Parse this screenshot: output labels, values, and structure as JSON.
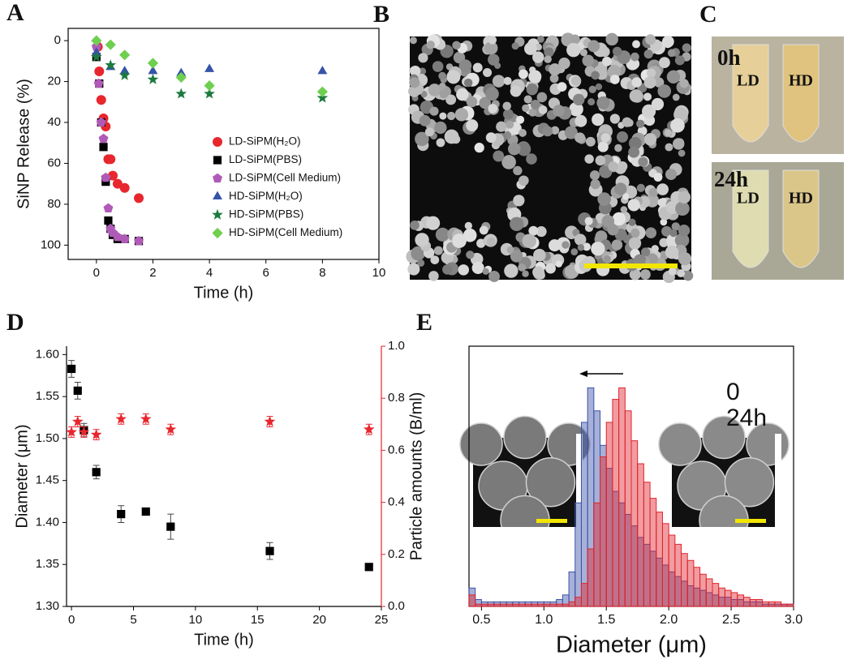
{
  "chart_data": [
    {
      "panel": "A",
      "type": "scatter",
      "xlabel": "Time (h)",
      "ylabel": "SiNP Release (%)",
      "xlim": [
        -1,
        10
      ],
      "xticks": [
        0,
        2,
        4,
        6,
        8,
        10
      ],
      "ylim": [
        -6,
        107
      ],
      "y_reversed": true,
      "yticks": [
        0,
        20,
        40,
        60,
        80,
        100
      ],
      "legend": "center-right",
      "series": [
        {
          "name": "LD-SiPM(H₂O)",
          "color": "#e8262d",
          "marker": "circle",
          "x": [
            0.05,
            0.1,
            0.17,
            0.25,
            0.33,
            0.42,
            0.5,
            0.58,
            0.75,
            1,
            1.5
          ],
          "values": [
            3,
            15,
            29,
            38,
            42,
            58,
            58,
            66,
            70,
            72,
            77
          ]
        },
        {
          "name": "LD-SiPM(PBS)",
          "color": "#000000",
          "marker": "square",
          "x": [
            0,
            0.1,
            0.17,
            0.25,
            0.33,
            0.42,
            0.5,
            0.58,
            0.75,
            1,
            1.5
          ],
          "values": [
            8,
            21,
            40,
            52,
            69,
            88,
            92,
            95,
            97,
            97,
            98
          ]
        },
        {
          "name": "LD-SiPM(Cell Medium)",
          "color": "#b05ab8",
          "marker": "pentagon",
          "x": [
            0,
            0.08,
            0.17,
            0.25,
            0.33,
            0.42,
            0.5,
            0.58,
            0.75,
            1,
            1.5
          ],
          "values": [
            3,
            21,
            40,
            48,
            67,
            82,
            92,
            94,
            96,
            97,
            98
          ]
        },
        {
          "name": "HD-SiPM(H₂O)",
          "color": "#3553a8",
          "marker": "triangle",
          "x": [
            0,
            0.5,
            1,
            2,
            3,
            4,
            8
          ],
          "values": [
            6,
            13,
            15,
            15,
            16,
            14,
            15
          ]
        },
        {
          "name": "HD-SiPM(PBS)",
          "color": "#1d7a3e",
          "marker": "star",
          "x": [
            0,
            0.5,
            1,
            2,
            3,
            4,
            8
          ],
          "values": [
            8,
            12,
            17,
            19,
            26,
            26,
            28
          ]
        },
        {
          "name": "HD-SiPM(Cell Medium)",
          "color": "#6fcf4f",
          "marker": "diamond",
          "x": [
            0,
            0.5,
            1,
            2,
            3,
            4,
            8
          ],
          "values": [
            0,
            2,
            7,
            11,
            18,
            22,
            25
          ]
        }
      ]
    },
    {
      "panel": "D",
      "type": "scatter",
      "xlabel": "Time (h)",
      "ylabel": "Diameter (μm)",
      "y2label": "Particle amounts (B/ml)",
      "y2color": "#e8262d",
      "xlim": [
        -0.4,
        25
      ],
      "xticks": [
        0,
        5,
        10,
        15,
        20,
        25
      ],
      "ylim": [
        1.3,
        1.61
      ],
      "yticks": [
        {
          "value": 1.3,
          "label": "1.30"
        },
        1.35,
        {
          "value": 1.4,
          "label": "1.40"
        },
        1.45,
        {
          "value": 1.5,
          "label": "1.50"
        },
        1.55,
        {
          "value": 1.6,
          "label": "1.60"
        }
      ],
      "y2lim": [
        0,
        1.0
      ],
      "y2ticks": [
        {
          "value": 0,
          "label": "0.0"
        },
        0.2,
        0.4,
        0.6,
        0.8,
        {
          "value": 1,
          "label": "1.0"
        }
      ],
      "series": [
        {
          "color": "#000000",
          "marker": "square",
          "x": [
            0,
            0.5,
            1,
            2,
            4,
            6,
            8,
            16,
            24
          ],
          "values": [
            1.583,
            1.557,
            1.51,
            1.46,
            1.41,
            1.413,
            1.395,
            1.366,
            1.347
          ],
          "errors": [
            0.01,
            0.01,
            0.008,
            0.008,
            0.01,
            0.004,
            0.015,
            0.01,
            0.003
          ]
        },
        {
          "color": "#e8262d",
          "marker": "star",
          "axis": "y2",
          "x": [
            0,
            0.5,
            1,
            2,
            4,
            6,
            8,
            16,
            24
          ],
          "values": [
            0.67,
            0.71,
            0.67,
            0.66,
            0.72,
            0.72,
            0.68,
            0.71,
            0.68
          ],
          "errors": [
            0.02,
            0.02,
            0.02,
            0.02,
            0.02,
            0.02,
            0.02,
            0.02,
            0.02
          ]
        }
      ]
    },
    {
      "panel": "E",
      "type": "histogram",
      "xlabel": "Diameter (μm)",
      "xlim": [
        0.4,
        3.0
      ],
      "xticks": [
        0.5,
        {
          "value": 1,
          "label": "1.0"
        },
        1.5,
        {
          "value": 2,
          "label": "2.0"
        },
        2.5,
        {
          "value": 3,
          "label": "3.0"
        }
      ],
      "bins": [
        0.4,
        0.45,
        0.5,
        0.55,
        0.6,
        0.65,
        0.7,
        0.75,
        0.8,
        0.85,
        0.9,
        0.95,
        1.0,
        1.05,
        1.1,
        1.15,
        1.2,
        1.25,
        1.3,
        1.35,
        1.4,
        1.45,
        1.5,
        1.55,
        1.6,
        1.65,
        1.7,
        1.75,
        1.8,
        1.85,
        1.9,
        1.95,
        2.0,
        2.05,
        2.1,
        2.15,
        2.2,
        2.25,
        2.3,
        2.35,
        2.4,
        2.45,
        2.5,
        2.55,
        2.6,
        2.65,
        2.7,
        2.75,
        2.8,
        2.85,
        2.9,
        2.95,
        3.0
      ],
      "series": [
        {
          "name": "0",
          "color": "#e0242c",
          "values": [
            5,
            1,
            1,
            1,
            1,
            1,
            1,
            1,
            1,
            1,
            1,
            1,
            1,
            1,
            1,
            1,
            2,
            4,
            10,
            25,
            45,
            65,
            80,
            90,
            95,
            85,
            72,
            62,
            54,
            47,
            41,
            36,
            31,
            27,
            23,
            20,
            17,
            14,
            12,
            10,
            8,
            7,
            6,
            5,
            4,
            3,
            3,
            2,
            2,
            2,
            1,
            1
          ]
        },
        {
          "name": "24h",
          "color": "#3c52a8",
          "values": [
            8,
            3,
            2,
            2,
            2,
            2,
            2,
            2,
            2,
            2,
            2,
            2,
            2,
            2,
            3,
            5,
            15,
            45,
            80,
            95,
            85,
            70,
            60,
            50,
            45,
            40,
            35,
            30,
            27,
            24,
            21,
            18,
            15,
            13,
            11,
            9,
            8,
            7,
            6,
            5,
            4,
            4,
            3,
            3,
            2,
            2,
            2,
            1,
            1,
            1,
            1,
            1
          ]
        }
      ]
    }
  ],
  "images": [
    {
      "panel": "B"
    },
    {
      "panel": "C",
      "top": {
        "time": "0h",
        "left": "LD",
        "right": "HD"
      },
      "bottom": {
        "time": "24h",
        "left": "LD",
        "right": "HD"
      }
    }
  ]
}
